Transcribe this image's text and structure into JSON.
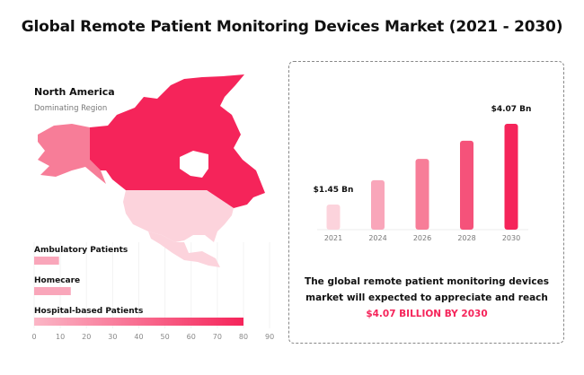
{
  "title": "Global Remote Patient Monitoring Devices Market (2021 - 2030)",
  "region": {
    "name": "North America",
    "subtitle": "Dominating Region"
  },
  "colors": {
    "accent": "#f5245a",
    "light": "#fcd3dc",
    "mid": "#f77d98",
    "alaska": "#f77d98"
  },
  "caption": {
    "text": "The global remote patient monitoring devices market will expected to appreciate and reach",
    "highlight": "$4.07 BILLION BY 2030"
  },
  "chart_data": [
    {
      "type": "bar",
      "orientation": "vertical",
      "categories": [
        "2021",
        "2024",
        "2026",
        "2028",
        "2030"
      ],
      "values": [
        1.45,
        2.24,
        2.93,
        3.52,
        4.07
      ],
      "data_labels": [
        "$1.45 Bn",
        "",
        "",
        "",
        "$4.07 Bn"
      ],
      "colors": [
        "#fcd3dc",
        "#f9a6ba",
        "#f77d98",
        "#f5527a",
        "#f5245a"
      ],
      "grid": false
    },
    {
      "type": "bar",
      "orientation": "horizontal",
      "categories": [
        "Ambulatory Patients",
        "Homecare",
        "Hospital-based Patients"
      ],
      "values": [
        9.5,
        14,
        80
      ],
      "xlim": [
        0,
        90
      ],
      "xticks": [
        "0",
        "10",
        "20",
        "30",
        "40",
        "50",
        "60",
        "70",
        "80",
        "90"
      ],
      "grid": true
    }
  ]
}
